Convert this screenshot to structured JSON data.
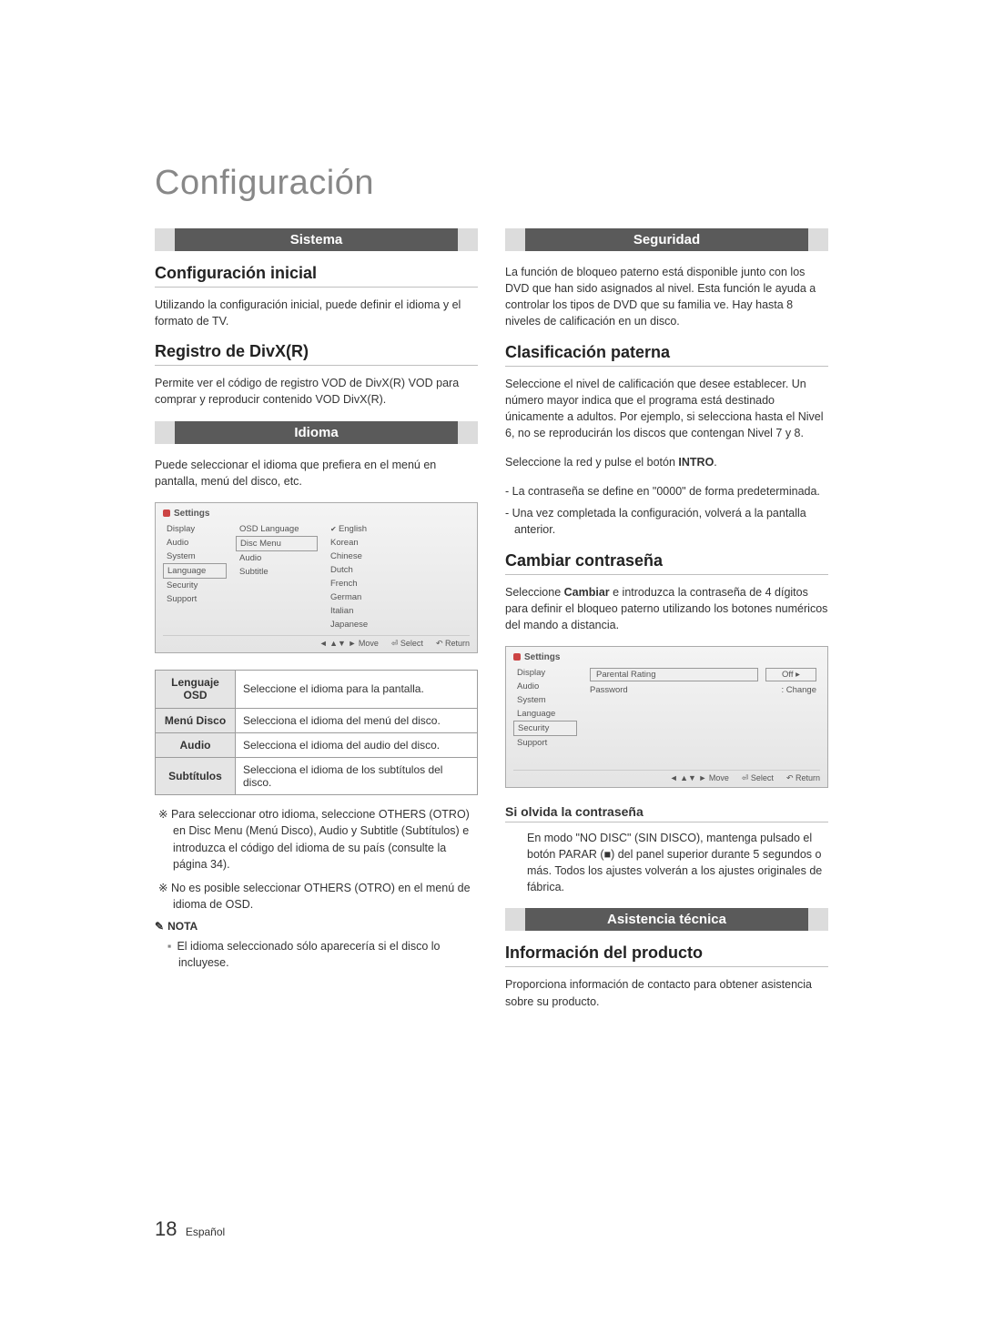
{
  "page": {
    "main_title": "Configuración",
    "page_number": "18",
    "page_lang": "Español"
  },
  "left": {
    "bar_sistema": "Sistema",
    "h_conf_inicial": "Configuración inicial",
    "p_conf_inicial": "Utilizando la configuración inicial, puede definir el idioma y el formato de TV.",
    "h_divx": "Registro de DivX(R)",
    "p_divx": "Permite ver el código de registro VOD de DivX(R) VOD para comprar y reproducir contenido VOD DivX(R).",
    "bar_idioma": "Idioma",
    "p_idioma": "Puede seleccionar el idioma que prefiera en el menú en pantalla, menú del disco, etc.",
    "mock1": {
      "header": "Settings",
      "side": [
        "Display",
        "Audio",
        "System",
        "Language",
        "Security",
        "Support"
      ],
      "side_selected_index": 3,
      "mid": [
        "OSD Language",
        "Disc Menu",
        "Audio",
        "Subtitle"
      ],
      "mid_boxed_index": 1,
      "opts": [
        "English",
        "Korean",
        "Chinese",
        "Dutch",
        "French",
        "German",
        "Italian",
        "Japanese"
      ],
      "opts_selected_index": 0,
      "footer": [
        "◄ ▲▼ ► Move",
        "⏎ Select",
        "↶ Return"
      ]
    },
    "lang_table": {
      "rows": [
        {
          "head": "Lenguaje OSD",
          "desc": "Seleccione el idioma para la pantalla."
        },
        {
          "head": "Menú Disco",
          "desc": "Selecciona el idioma del menú del disco."
        },
        {
          "head": "Audio",
          "desc": "Selecciona el idioma del audio del disco."
        },
        {
          "head": "Subtítulos",
          "desc": "Selecciona el idioma de los subtítulos del disco."
        }
      ]
    },
    "ast1": "※ Para seleccionar otro idioma, seleccione OTHERS (OTRO) en Disc Menu (Menú Disco), Audio y Subtitle (Subtítulos) e introduzca el código del idioma de su país (consulte la página 34).",
    "ast2": "※ No es posible seleccionar OTHERS (OTRO) en el menú de idioma de OSD.",
    "note_label": "NOTA",
    "note_pen": "✎",
    "note_item": "El idioma seleccionado sólo aparecería si el disco lo incluyese."
  },
  "right": {
    "bar_seguridad": "Seguridad",
    "p_seguridad": "La función de bloqueo paterno está disponible junto con los DVD que han sido asignados al nivel. Esta función le ayuda a controlar los tipos de DVD que su familia ve. Hay hasta 8 niveles de calificación en un disco.",
    "h_clasif": "Clasificación paterna",
    "p_clasif1": "Seleccione el nivel de calificación que desee establecer. Un número mayor indica que el programa está destinado únicamente a adultos. Por ejemplo, si selecciona hasta el Nivel 6, no se reproducirán los discos que contengan Nivel 7 y 8.",
    "p_clasif2_pre": "Seleccione la red y pulse el botón ",
    "p_clasif2_bold": "INTRO",
    "p_clasif2_post": ".",
    "li1": "- La contraseña se define en \"0000\" de forma predeterminada.",
    "li2": "- Una vez completada la configuración, volverá a la pantalla anterior.",
    "h_cambiar": "Cambiar contraseña",
    "p_cambiar_pre": "Seleccione ",
    "p_cambiar_bold": "Cambiar",
    "p_cambiar_post": " e introduzca la contraseña de 4 dígitos para definir el bloqueo paterno utilizando los botones numéricos del mando a distancia.",
    "mock2": {
      "header": "Settings",
      "side": [
        "Display",
        "Audio",
        "System",
        "Language",
        "Security",
        "Support"
      ],
      "side_selected_index": 4,
      "rows": [
        {
          "label": "Parental Rating",
          "value": "Off",
          "boxed": true,
          "val_tri": "▸"
        },
        {
          "label": "Password",
          "value": ": Change",
          "boxed": false
        }
      ],
      "footer": [
        "◄ ▲▼ ► Move",
        "⏎ Select",
        "↶ Return"
      ]
    },
    "h_olvida": "Si olvida la contraseña",
    "p_olvida": "En modo \"NO DISC\" (SIN DISCO), mantenga pulsado el botón PARAR (■) del panel superior durante 5 segundos o más. Todos los ajustes volverán a los ajustes originales de fábrica.",
    "bar_asist": "Asistencia técnica",
    "h_info": "Información del producto",
    "p_info": "Proporciona información de contacto para obtener asistencia sobre su producto."
  }
}
